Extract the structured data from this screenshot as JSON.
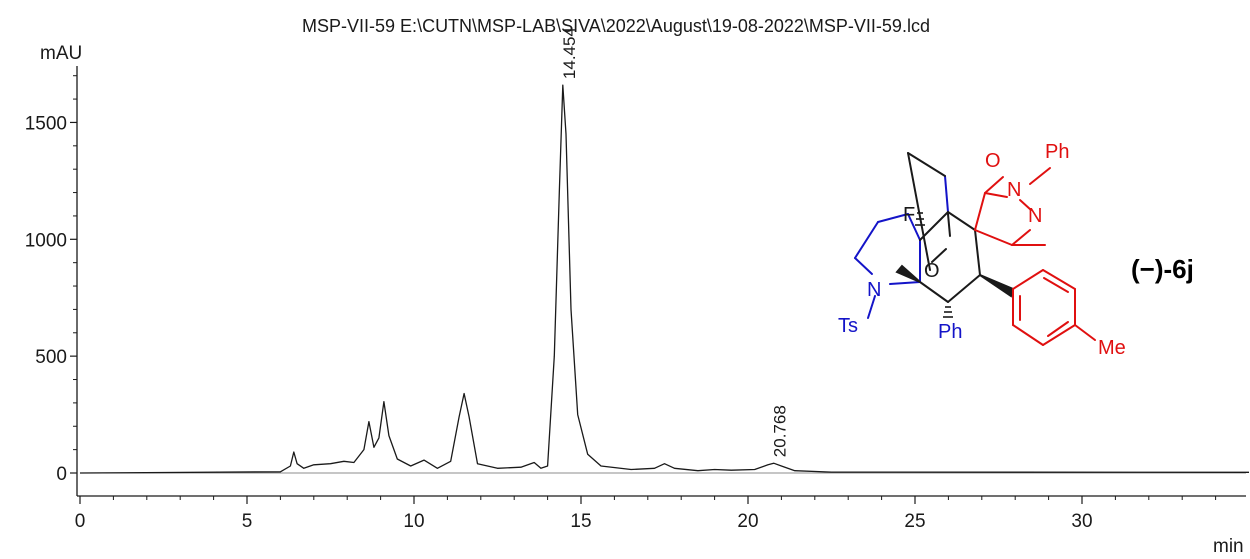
{
  "chart_data": {
    "type": "line",
    "title": "MSP-VII-59 E:\\CUTN\\MSP-LAB\\SIVA\\2022\\August\\19-08-2022\\MSP-VII-59.lcd",
    "xlabel": "min",
    "ylabel": "mAU",
    "xlim": [
      0,
      35
    ],
    "ylim": [
      -50,
      1750
    ],
    "x_ticks": [
      0,
      5,
      10,
      15,
      20,
      25,
      30
    ],
    "y_ticks": [
      0,
      500,
      1000,
      1500
    ],
    "grid": false,
    "series": [
      {
        "x": [
          0,
          6.0,
          6.3,
          6.4,
          6.5,
          6.7,
          7.0,
          7.5,
          7.9,
          8.2,
          8.5,
          8.65,
          8.8,
          8.95,
          9.1,
          9.25,
          9.5,
          9.9,
          10.3,
          10.7,
          11.1,
          11.35,
          11.5,
          11.65,
          11.9,
          12.5,
          13.2,
          13.6,
          13.8,
          14.0,
          14.2,
          14.35,
          14.454,
          14.55,
          14.7,
          14.9,
          15.2,
          15.6,
          16.5,
          17.2,
          17.5,
          17.8,
          18.5,
          19.0,
          19.5,
          20.2,
          20.6,
          20.768,
          21.0,
          21.4,
          22.5,
          35
        ],
        "y": [
          0,
          5,
          30,
          90,
          40,
          20,
          35,
          40,
          50,
          45,
          100,
          220,
          110,
          150,
          305,
          160,
          60,
          30,
          55,
          20,
          50,
          240,
          340,
          240,
          40,
          20,
          25,
          45,
          20,
          30,
          500,
          1200,
          1660,
          1450,
          700,
          250,
          80,
          30,
          15,
          20,
          40,
          20,
          10,
          15,
          12,
          15,
          35,
          42,
          30,
          10,
          4,
          3
        ]
      }
    ],
    "peak_labels": [
      "14.454",
      "20.768"
    ],
    "peaks": [
      {
        "label": "14.454",
        "x": 14.454,
        "y": 1660
      },
      {
        "label": "20.768",
        "x": 20.768,
        "y": 42
      }
    ]
  },
  "molecule": {
    "compound_label": "(−)-6j",
    "atoms": {
      "F": "F",
      "O_bridge": "O",
      "N_ring": "N",
      "Ts": "Ts",
      "Ph_bottom": "Ph",
      "O_carbonyl": "O",
      "N_pyrazolone_1": "N",
      "Ph_top": "Ph",
      "N_pyrazolone_2": "N",
      "Me": "Me"
    },
    "colors": {
      "blue": "#1414c8",
      "red": "#e01010",
      "black": "#1a1a1a"
    }
  }
}
